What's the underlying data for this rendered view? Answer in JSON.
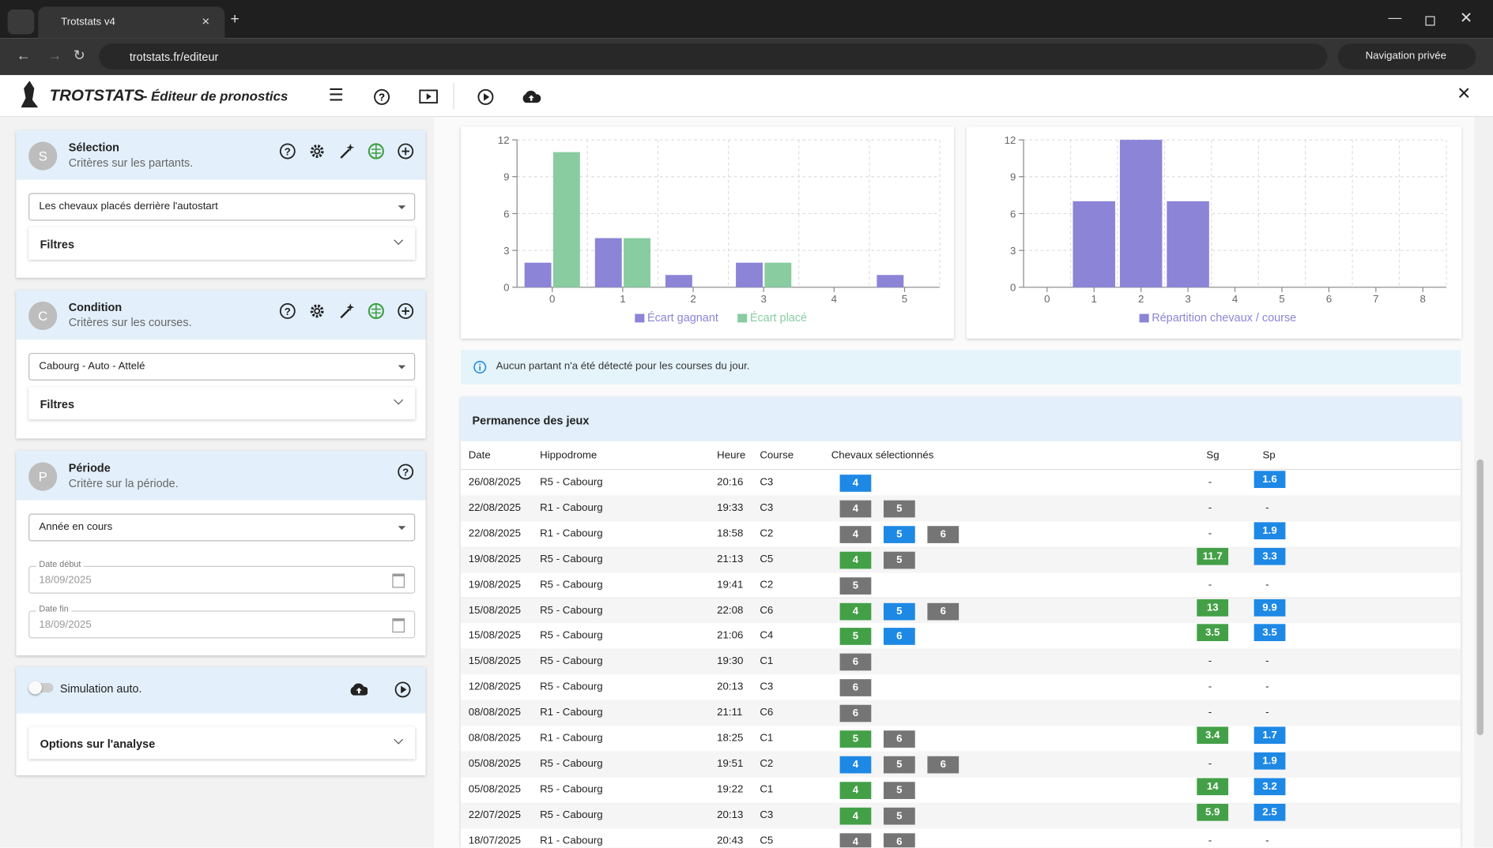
{
  "browser": {
    "tab": "Trotstats v4",
    "url": "trotstats.fr/editeur",
    "private": "Navigation privée"
  },
  "app": {
    "brand": "TROTSTATS",
    "subtitle": "- Éditeur de pronostics"
  },
  "panels": [
    {
      "avatar": "S",
      "title": "Sélection",
      "subtitle": "Critères sur les partants.",
      "select": "Les chevaux placés derrière l'autostart",
      "filters": "Filtres"
    },
    {
      "avatar": "C",
      "title": "Condition",
      "subtitle": "Critères sur les courses.",
      "select": "Cabourg - Auto - Attelé",
      "filters": "Filtres"
    },
    {
      "avatar": "P",
      "title": "Période",
      "subtitle": "Critère sur la période.",
      "select": "Année en cours",
      "date_start_label": "Date début",
      "date_start": "18/09/2025",
      "date_end_label": "Date fin",
      "date_end": "18/09/2025"
    }
  ],
  "simulation": {
    "label": "Simulation auto.",
    "options": "Options sur l'analyse"
  },
  "chart_data": [
    {
      "type": "bar",
      "categories": [
        "0",
        "1",
        "2",
        "3",
        "4",
        "5"
      ],
      "series": [
        {
          "name": "Écart gagnant",
          "color": "#8b84d7",
          "values": [
            2,
            4,
            1,
            2,
            0,
            1
          ]
        },
        {
          "name": "Écart placé",
          "color": "#88cca0",
          "values": [
            11,
            4,
            0,
            2,
            0,
            0
          ]
        }
      ],
      "ylim": [
        0,
        12
      ],
      "yticks": [
        0,
        3,
        6,
        9,
        12
      ],
      "grid": true
    },
    {
      "type": "bar",
      "categories": [
        "0",
        "1",
        "2",
        "3",
        "4",
        "5",
        "6",
        "7",
        "8"
      ],
      "series": [
        {
          "name": "Répartition chevaux / course",
          "color": "#8b84d7",
          "values": [
            0,
            7,
            12,
            7,
            0,
            0,
            0,
            0,
            0
          ]
        }
      ],
      "ylim": [
        0,
        12
      ],
      "yticks": [
        0,
        3,
        6,
        9,
        12
      ],
      "grid": true
    }
  ],
  "info": "Aucun partant n'a été détecté pour les courses du jour.",
  "table": {
    "title": "Permanence des jeux",
    "headers": [
      "Date",
      "Hippodrome",
      "Heure",
      "Course",
      "Chevaux sélectionnés",
      "Sg",
      "Sp"
    ],
    "sg_color": "#43a047",
    "sp_color": "#1e88e5",
    "rows": [
      {
        "date": "26/08/2025",
        "hippodrome": "R5 - Cabourg",
        "heure": "20:16",
        "course": "C3",
        "horses": [
          {
            "n": "4",
            "color": "#1e88e5"
          }
        ],
        "sg": "-",
        "sp": "1.6"
      },
      {
        "date": "22/08/2025",
        "hippodrome": "R1 - Cabourg",
        "heure": "19:33",
        "course": "C3",
        "horses": [
          {
            "n": "4",
            "color": "#757575"
          },
          {
            "n": "5",
            "color": "#757575"
          }
        ],
        "sg": "-",
        "sp": "-"
      },
      {
        "date": "22/08/2025",
        "hippodrome": "R1 - Cabourg",
        "heure": "18:58",
        "course": "C2",
        "horses": [
          {
            "n": "4",
            "color": "#757575"
          },
          {
            "n": "5",
            "color": "#1e88e5"
          },
          {
            "n": "6",
            "color": "#757575"
          }
        ],
        "sg": "-",
        "sp": "1.9"
      },
      {
        "date": "19/08/2025",
        "hippodrome": "R5 - Cabourg",
        "heure": "21:13",
        "course": "C5",
        "horses": [
          {
            "n": "4",
            "color": "#43a047"
          },
          {
            "n": "5",
            "color": "#757575"
          }
        ],
        "sg": "11.7",
        "sp": "3.3"
      },
      {
        "date": "19/08/2025",
        "hippodrome": "R5 - Cabourg",
        "heure": "19:41",
        "course": "C2",
        "horses": [
          {
            "n": "5",
            "color": "#757575"
          }
        ],
        "sg": "-",
        "sp": "-"
      },
      {
        "date": "15/08/2025",
        "hippodrome": "R5 - Cabourg",
        "heure": "22:08",
        "course": "C6",
        "horses": [
          {
            "n": "4",
            "color": "#43a047"
          },
          {
            "n": "5",
            "color": "#1e88e5"
          },
          {
            "n": "6",
            "color": "#757575"
          }
        ],
        "sg": "13",
        "sp": "9.9"
      },
      {
        "date": "15/08/2025",
        "hippodrome": "R5 - Cabourg",
        "heure": "21:06",
        "course": "C4",
        "horses": [
          {
            "n": "5",
            "color": "#43a047"
          },
          {
            "n": "6",
            "color": "#1e88e5"
          }
        ],
        "sg": "3.5",
        "sp": "3.5"
      },
      {
        "date": "15/08/2025",
        "hippodrome": "R5 - Cabourg",
        "heure": "19:30",
        "course": "C1",
        "horses": [
          {
            "n": "6",
            "color": "#757575"
          }
        ],
        "sg": "-",
        "sp": "-"
      },
      {
        "date": "12/08/2025",
        "hippodrome": "R5 - Cabourg",
        "heure": "20:13",
        "course": "C3",
        "horses": [
          {
            "n": "6",
            "color": "#757575"
          }
        ],
        "sg": "-",
        "sp": "-"
      },
      {
        "date": "08/08/2025",
        "hippodrome": "R1 - Cabourg",
        "heure": "21:11",
        "course": "C6",
        "horses": [
          {
            "n": "6",
            "color": "#757575"
          }
        ],
        "sg": "-",
        "sp": "-"
      },
      {
        "date": "08/08/2025",
        "hippodrome": "R1 - Cabourg",
        "heure": "18:25",
        "course": "C1",
        "horses": [
          {
            "n": "5",
            "color": "#43a047"
          },
          {
            "n": "6",
            "color": "#757575"
          }
        ],
        "sg": "3.4",
        "sp": "1.7"
      },
      {
        "date": "05/08/2025",
        "hippodrome": "R5 - Cabourg",
        "heure": "19:51",
        "course": "C2",
        "horses": [
          {
            "n": "4",
            "color": "#1e88e5"
          },
          {
            "n": "5",
            "color": "#757575"
          },
          {
            "n": "6",
            "color": "#757575"
          }
        ],
        "sg": "-",
        "sp": "1.9"
      },
      {
        "date": "05/08/2025",
        "hippodrome": "R5 - Cabourg",
        "heure": "19:22",
        "course": "C1",
        "horses": [
          {
            "n": "4",
            "color": "#43a047"
          },
          {
            "n": "5",
            "color": "#757575"
          }
        ],
        "sg": "14",
        "sp": "3.2"
      },
      {
        "date": "22/07/2025",
        "hippodrome": "R5 - Cabourg",
        "heure": "20:13",
        "course": "C3",
        "horses": [
          {
            "n": "4",
            "color": "#43a047"
          },
          {
            "n": "5",
            "color": "#757575"
          }
        ],
        "sg": "5.9",
        "sp": "2.5"
      },
      {
        "date": "18/07/2025",
        "hippodrome": "R1 - Cabourg",
        "heure": "20:43",
        "course": "C5",
        "horses": [
          {
            "n": "4",
            "color": "#757575"
          },
          {
            "n": "6",
            "color": "#757575"
          }
        ],
        "sg": "-",
        "sp": "-"
      }
    ]
  }
}
